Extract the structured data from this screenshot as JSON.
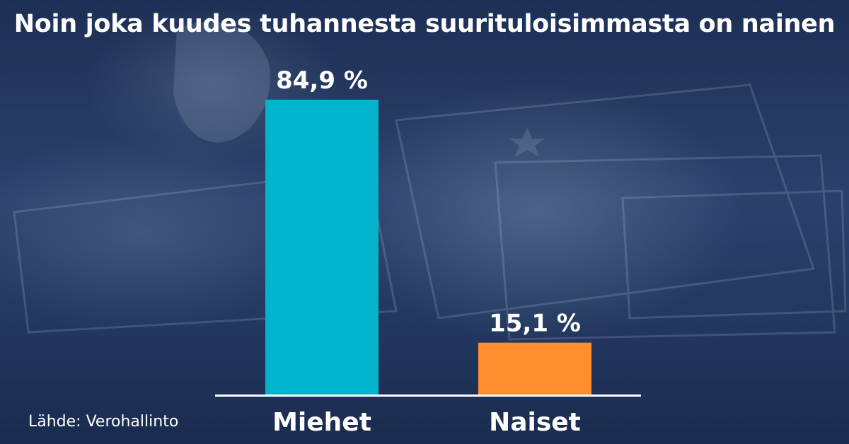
{
  "title": "Noin joka kuudes tuhannesta suurituloisimmasta on nainen",
  "source": "Lähde: Verohallinto",
  "colors": {
    "men": "#00b4cc",
    "women": "#ff8f2d",
    "text": "#ffffff",
    "baseline": "#ffffff"
  },
  "chart_data": {
    "type": "bar",
    "title": "Noin joka kuudes tuhannesta suurituloisimmasta on nainen",
    "categories": [
      "Miehet",
      "Naiset"
    ],
    "values": [
      84.9,
      15.1
    ],
    "value_labels": [
      "84,9 %",
      "15,1 %"
    ],
    "unit": "%",
    "ylim": [
      0,
      100
    ],
    "grid": false,
    "xlabel": "",
    "ylabel": ""
  }
}
